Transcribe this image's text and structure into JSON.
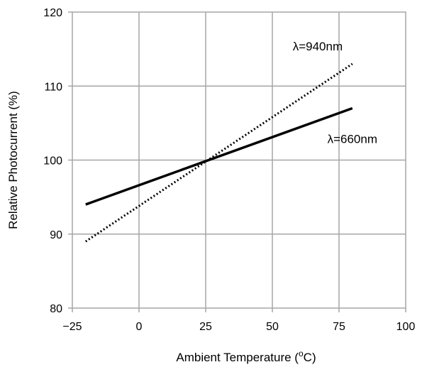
{
  "chart_data": {
    "type": "line",
    "xlabel_main": "Ambient Temperature  (",
    "xlabel_sup": "o",
    "xlabel_tail": "C)",
    "ylabel": "Relative Photocurrent  (%)",
    "xlim": [
      -25,
      100
    ],
    "ylim": [
      80,
      120
    ],
    "x_ticks": [
      "−25",
      "0",
      "25",
      "50",
      "75",
      "100"
    ],
    "x_tick_values": [
      -25,
      0,
      25,
      50,
      75,
      100
    ],
    "y_ticks": [
      "80",
      "90",
      "100",
      "110",
      "120"
    ],
    "y_tick_values": [
      80,
      90,
      100,
      110,
      120
    ],
    "grid": true,
    "series": [
      {
        "name": "λ=660nm",
        "style": "solid",
        "color": "#000000",
        "x": [
          -20,
          80
        ],
        "y": [
          94,
          107
        ],
        "label_at": [
          80,
          102.3
        ]
      },
      {
        "name": "λ=940nm",
        "style": "dotted",
        "color": "#000000",
        "x": [
          -20,
          80
        ],
        "y": [
          89,
          113
        ],
        "label_at": [
          67,
          114.8
        ]
      }
    ]
  }
}
